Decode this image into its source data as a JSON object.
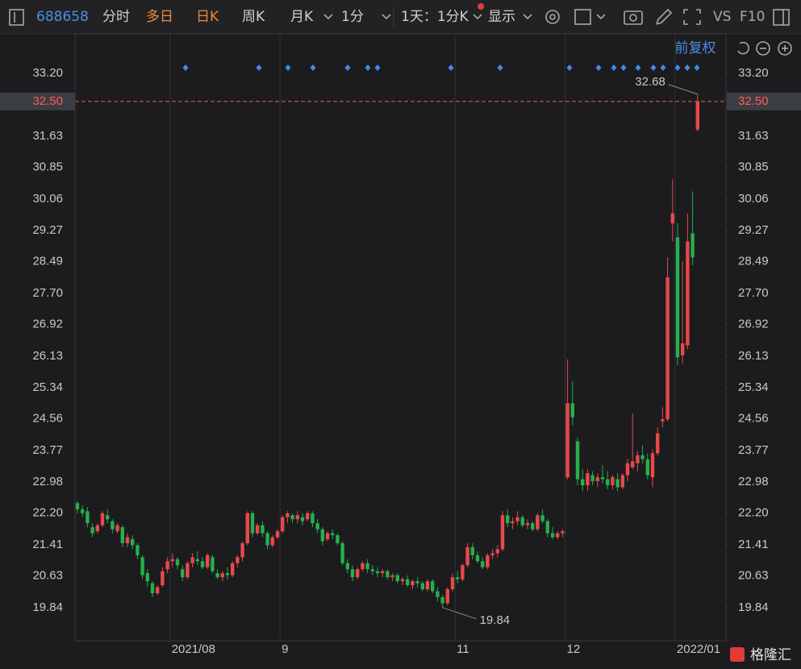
{
  "toolbar": {
    "code": "688658",
    "tabs": [
      "分时",
      "多日",
      "日K",
      "周K",
      "月K",
      "1分",
      "1天：1分K",
      "显示"
    ],
    "vs": "VS",
    "f10": "F10"
  },
  "adjust": "前复权",
  "watermark": "格隆汇",
  "chart_data": {
    "type": "candlestick",
    "up_color": "#e8494b",
    "down_color": "#25b04d",
    "x_grid": true,
    "ylim": [
      19.01,
      34.19
    ],
    "yticks": [
      {
        "value": 33.2,
        "label": "33.20"
      },
      31.63,
      30.85,
      30.06,
      29.27,
      28.49,
      {
        "value": 27.7,
        "label": "27.70"
      },
      26.92,
      26.13,
      25.34,
      24.56,
      23.77,
      22.98,
      {
        "value": 22.2,
        "label": "22.20"
      },
      21.41,
      20.63,
      19.84
    ],
    "last_price": {
      "value": 32.5,
      "label": "32.50"
    },
    "categories": [
      null,
      null,
      null,
      null,
      null,
      null,
      null,
      null,
      null,
      null,
      null,
      null,
      null,
      null,
      null,
      null,
      null,
      null,
      null,
      "2021/08",
      null,
      null,
      null,
      null,
      null,
      null,
      null,
      null,
      null,
      null,
      null,
      null,
      null,
      null,
      null,
      null,
      null,
      null,
      null,
      null,
      null,
      "9",
      null,
      null,
      null,
      null,
      null,
      null,
      null,
      null,
      null,
      null,
      null,
      null,
      null,
      null,
      null,
      null,
      null,
      null,
      null,
      null,
      null,
      null,
      null,
      null,
      null,
      null,
      null,
      null,
      null,
      null,
      null,
      null,
      null,
      null,
      "11",
      null,
      null,
      null,
      null,
      null,
      null,
      null,
      null,
      null,
      null,
      null,
      null,
      null,
      null,
      null,
      null,
      null,
      null,
      null,
      null,
      null,
      "12",
      null,
      null,
      null,
      null,
      null,
      null,
      null,
      null,
      null,
      null,
      null,
      null,
      null,
      null,
      null,
      null,
      null,
      null,
      null,
      null,
      null,
      "2022/01",
      null,
      null,
      null,
      null
    ],
    "open": [
      22.45,
      22.3,
      22.25,
      21.85,
      21.75,
      21.9,
      22.15,
      22.0,
      21.75,
      21.85,
      21.45,
      21.55,
      21.4,
      21.1,
      20.7,
      20.45,
      20.2,
      20.4,
      20.8,
      21.0,
      21.05,
      20.8,
      20.6,
      20.95,
      21.05,
      21.0,
      20.85,
      21.1,
      20.7,
      20.6,
      20.7,
      20.65,
      20.95,
      21.1,
      21.45,
      22.2,
      21.7,
      21.9,
      21.7,
      21.4,
      21.6,
      21.75,
      22.1,
      22.15,
      22.05,
      22.1,
      22.05,
      22.2,
      21.95,
      21.8,
      21.55,
      21.7,
      21.65,
      21.45,
      20.95,
      20.8,
      20.6,
      20.8,
      20.95,
      20.8,
      20.75,
      20.7,
      20.75,
      20.6,
      20.65,
      20.5,
      20.55,
      20.4,
      20.5,
      20.45,
      20.3,
      20.5,
      20.25,
      20.1,
      19.95,
      20.3,
      20.6,
      20.55,
      20.9,
      21.35,
      21.15,
      21.0,
      20.85,
      21.15,
      21.2,
      21.3,
      22.15,
      21.95,
      22.0,
      22.1,
      21.9,
      21.95,
      21.8,
      22.15,
      22.0,
      21.7,
      21.6,
      21.7,
      23.1,
      24.95,
      24.0,
      23.05,
      22.9,
      23.15,
      23.0,
      23.1,
      23.05,
      22.9,
      23.05,
      22.85,
      23.15,
      23.35,
      23.45,
      23.65,
      23.55,
      23.1,
      23.7,
      24.5,
      24.55,
      29.45,
      29.1,
      26.15,
      26.4,
      29.2,
      31.8
    ],
    "high": [
      22.5,
      22.4,
      22.35,
      21.95,
      21.95,
      22.25,
      22.3,
      22.05,
      21.95,
      21.9,
      21.7,
      21.65,
      21.45,
      21.15,
      20.8,
      20.5,
      20.4,
      20.85,
      21.1,
      21.2,
      21.1,
      20.9,
      21.0,
      21.2,
      21.25,
      21.1,
      21.2,
      21.15,
      20.8,
      20.75,
      20.85,
      21.0,
      21.15,
      21.5,
      22.25,
      22.25,
      21.95,
      22.0,
      21.75,
      21.65,
      21.8,
      22.15,
      22.25,
      22.2,
      22.25,
      22.2,
      22.25,
      22.25,
      22.05,
      21.85,
      21.75,
      21.8,
      21.7,
      21.5,
      21.05,
      20.9,
      20.85,
      21.0,
      21.05,
      20.9,
      20.85,
      20.8,
      20.8,
      20.7,
      20.7,
      20.6,
      20.65,
      20.55,
      20.6,
      20.5,
      20.55,
      20.55,
      20.35,
      20.15,
      20.35,
      20.7,
      20.75,
      20.95,
      21.45,
      21.45,
      21.25,
      21.1,
      21.2,
      21.3,
      21.4,
      22.25,
      22.3,
      22.1,
      22.25,
      22.15,
      22.05,
      22.0,
      22.2,
      22.3,
      22.05,
      21.85,
      21.75,
      21.8,
      26.05,
      25.5,
      24.1,
      23.3,
      23.3,
      23.25,
      23.2,
      23.4,
      23.25,
      23.15,
      23.2,
      23.2,
      23.55,
      24.7,
      23.75,
      23.9,
      23.7,
      23.8,
      24.35,
      24.85,
      28.6,
      30.55,
      29.45,
      28.5,
      29.7,
      30.25,
      32.68
    ],
    "low": [
      22.2,
      22.1,
      21.85,
      21.6,
      21.7,
      21.85,
      21.95,
      21.7,
      21.7,
      21.35,
      21.35,
      21.3,
      21.05,
      20.55,
      20.35,
      20.1,
      20.15,
      20.35,
      20.7,
      20.85,
      20.8,
      20.5,
      20.55,
      20.85,
      20.9,
      20.8,
      20.8,
      20.7,
      20.55,
      20.5,
      20.55,
      20.6,
      20.85,
      21.0,
      21.4,
      21.6,
      21.65,
      21.6,
      21.3,
      21.35,
      21.55,
      21.7,
      21.95,
      21.95,
      21.95,
      21.9,
      22.0,
      21.85,
      21.7,
      21.4,
      21.5,
      21.55,
      21.4,
      20.9,
      20.7,
      20.5,
      20.55,
      20.75,
      20.7,
      20.65,
      20.6,
      20.6,
      20.55,
      20.5,
      20.45,
      20.4,
      20.35,
      20.3,
      20.35,
      20.25,
      20.25,
      20.2,
      20.0,
      19.84,
      19.9,
      20.25,
      20.45,
      20.5,
      20.85,
      21.05,
      20.95,
      20.8,
      20.8,
      21.05,
      21.1,
      21.25,
      21.85,
      21.8,
      21.9,
      21.85,
      21.8,
      21.75,
      21.75,
      21.95,
      21.6,
      21.55,
      21.55,
      21.6,
      23.05,
      24.4,
      22.9,
      22.75,
      22.75,
      22.9,
      22.85,
      22.95,
      22.8,
      22.8,
      22.75,
      22.8,
      23.0,
      23.3,
      23.25,
      23.45,
      23.05,
      22.85,
      23.65,
      24.35,
      24.5,
      29.0,
      25.9,
      25.95,
      26.3,
      28.4,
      31.75
    ],
    "close": [
      22.3,
      22.2,
      21.95,
      21.7,
      21.9,
      22.2,
      22.05,
      21.8,
      21.9,
      21.45,
      21.6,
      21.4,
      21.15,
      20.65,
      20.5,
      20.2,
      20.35,
      20.75,
      21.0,
      21.05,
      20.9,
      20.6,
      20.95,
      21.1,
      21.0,
      20.85,
      21.15,
      20.75,
      20.6,
      20.7,
      20.65,
      20.95,
      21.1,
      21.45,
      22.2,
      21.7,
      21.9,
      21.7,
      21.4,
      21.6,
      21.75,
      22.1,
      22.2,
      22.05,
      22.15,
      22.0,
      22.2,
      21.95,
      21.8,
      21.5,
      21.7,
      21.65,
      21.45,
      20.95,
      20.8,
      20.6,
      20.8,
      20.95,
      20.8,
      20.75,
      20.7,
      20.75,
      20.6,
      20.65,
      20.5,
      20.55,
      20.4,
      20.5,
      20.45,
      20.3,
      20.5,
      20.25,
      20.1,
      19.95,
      20.3,
      20.6,
      20.55,
      20.9,
      21.35,
      21.15,
      21.0,
      20.85,
      21.15,
      21.2,
      21.3,
      22.15,
      21.95,
      22.0,
      22.1,
      21.9,
      21.95,
      21.8,
      22.15,
      22.0,
      21.7,
      21.6,
      21.7,
      21.75,
      24.95,
      24.6,
      23.05,
      22.9,
      23.2,
      23.0,
      23.1,
      23.05,
      22.9,
      23.1,
      22.85,
      23.15,
      23.45,
      23.5,
      23.65,
      23.55,
      23.15,
      23.7,
      24.2,
      24.55,
      28.1,
      29.7,
      26.1,
      26.45,
      29.0,
      28.6,
      32.5
    ]
  }
}
